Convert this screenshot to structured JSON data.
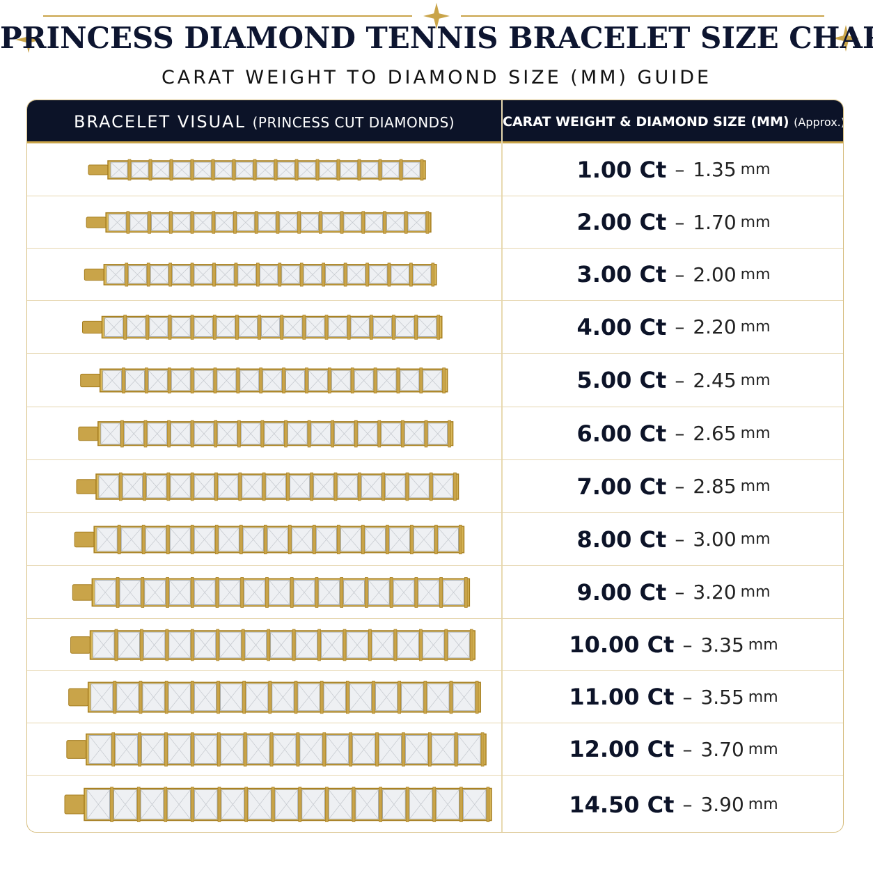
{
  "header": {
    "title": "PRINCESS DIAMOND TENNIS BRACELET SIZE CHART",
    "subtitle": "CARAT WEIGHT TO DIAMOND SIZE (MM) GUIDE",
    "ornament_icon": "four-point-star-icon"
  },
  "table": {
    "col1_header": "BRACELET VISUAL",
    "col1_header_note": "(PRINCESS CUT DIAMONDS)",
    "col2_header": "CARAT WEIGHT & DIAMOND SIZE (MM)",
    "col2_header_note": "(Approx.)",
    "dash": "–",
    "unit": "mm",
    "rows": [
      {
        "carat": "1.00 Ct",
        "size": "1.35"
      },
      {
        "carat": "2.00 Ct",
        "size": "1.70"
      },
      {
        "carat": "3.00 Ct",
        "size": "2.00"
      },
      {
        "carat": "4.00 Ct",
        "size": "2.20"
      },
      {
        "carat": "5.00 Ct",
        "size": "2.45"
      },
      {
        "carat": "6.00 Ct",
        "size": "2.65"
      },
      {
        "carat": "7.00 Ct",
        "size": "2.85"
      },
      {
        "carat": "8.00 Ct",
        "size": "3.00"
      },
      {
        "carat": "9.00 Ct",
        "size": "3.20"
      },
      {
        "carat": "10.00 Ct",
        "size": "3.35"
      },
      {
        "carat": "11.00 Ct",
        "size": "3.55"
      },
      {
        "carat": "12.00 Ct",
        "size": "3.70"
      },
      {
        "carat": "14.50 Ct",
        "size": "3.90"
      }
    ]
  },
  "colors": {
    "navy": "#0c1328",
    "gold": "#c9a449",
    "gold_dark": "#a57d1e",
    "diamond": "#eef0f3"
  }
}
